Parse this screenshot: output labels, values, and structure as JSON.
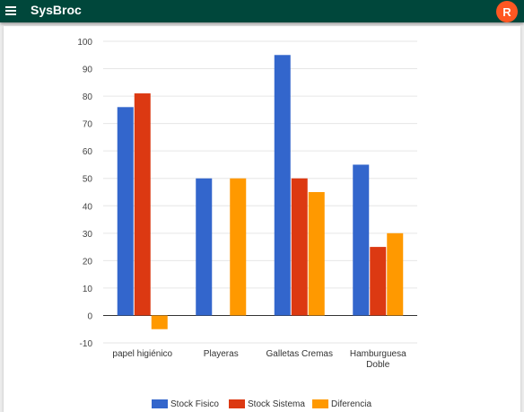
{
  "app": {
    "title": "SysBroc",
    "user_initial": "R",
    "menu_icon": "menu-icon",
    "colors": {
      "appbar": "#00473b",
      "avatar": "#ff5722"
    }
  },
  "chart_data": {
    "type": "bar",
    "categories": [
      [
        "papel higiénico"
      ],
      [
        "Playeras"
      ],
      [
        "Galletas Cremas"
      ],
      [
        "Hamburguesa",
        "Doble"
      ]
    ],
    "series": [
      {
        "name": "Stock Fisico",
        "color": "#3366cc",
        "values": [
          76,
          50,
          95,
          55
        ]
      },
      {
        "name": "Stock Sistema",
        "color": "#dc3912",
        "values": [
          81,
          0,
          50,
          25
        ]
      },
      {
        "name": "Diferencia",
        "color": "#ff9900",
        "values": [
          -5,
          50,
          45,
          30
        ]
      }
    ],
    "ylim": [
      -10,
      100
    ],
    "yticks": [
      -10,
      0,
      10,
      20,
      30,
      40,
      50,
      60,
      70,
      80,
      90,
      100
    ],
    "grid": true,
    "legend": "bottom"
  }
}
